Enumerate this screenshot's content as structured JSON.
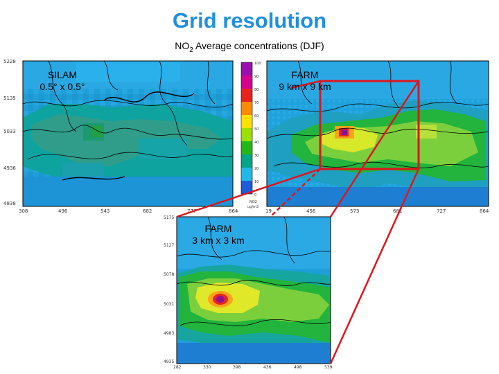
{
  "header": {
    "title": "Grid resolution",
    "subtitle_prefix": "NO",
    "subtitle_sub": "2",
    "subtitle_suffix": " Average concentrations (DJF)"
  },
  "panels": {
    "silam": {
      "label_line1": "SILAM",
      "label_line2": "0.5° x 0.5°"
    },
    "farm9": {
      "label_line1": "FARM",
      "label_line2": "9 km x 9 km"
    },
    "farm3": {
      "label_line1": "FARM",
      "label_line2": "3 km x 3 km"
    }
  },
  "axes": {
    "left_y": [
      "5228",
      "5135",
      "5033",
      "4936",
      "4838"
    ],
    "left_x": [
      "308",
      "496",
      "543",
      "682",
      "777",
      "864"
    ],
    "right_x": [
      "19",
      "456",
      "573",
      "681",
      "727",
      "864"
    ],
    "bottom_y": [
      "5175",
      "5127",
      "5078",
      "5031",
      "4983",
      "4935"
    ],
    "bottom_x": [
      "282",
      "330",
      "398",
      "436",
      "498",
      "539"
    ]
  },
  "colorbar": {
    "ticks": [
      "100",
      "90",
      "80",
      "70",
      "60",
      "50",
      "40",
      "30",
      "20",
      "10",
      "0"
    ],
    "unit": "NO2",
    "unit2": "ug/m3",
    "colors": [
      "#9a0fb0",
      "#d6008f",
      "#e8231f",
      "#ff8c00",
      "#ffe000",
      "#9be000",
      "#22b81a",
      "#00a58a",
      "#22b8e8",
      "#1e5bd8"
    ]
  },
  "colors": {
    "title": "#1f8fe0",
    "highlight_box": "#e0141c",
    "connector": "#e0141c"
  }
}
